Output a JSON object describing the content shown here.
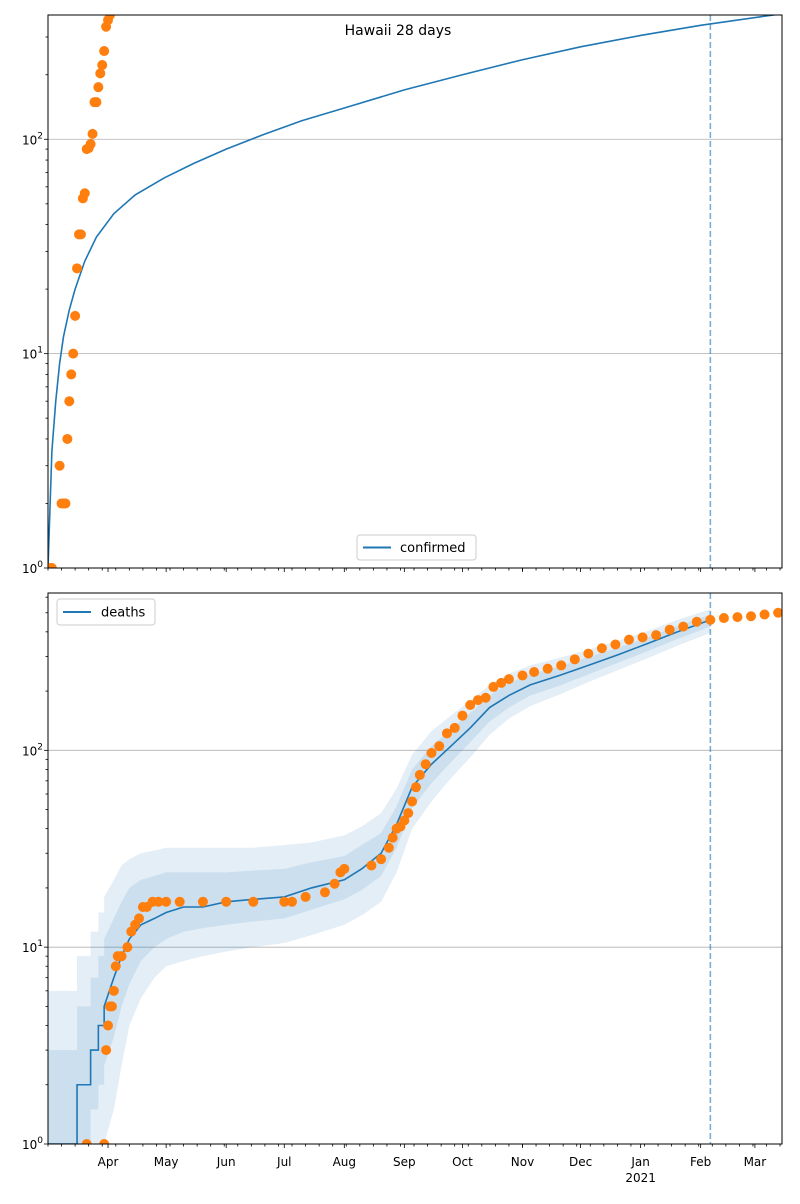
{
  "title": "Hawaii 28 days",
  "colors": {
    "model": "#1f77b4",
    "observed": "#ff7f0e",
    "band": "#1f77b4",
    "grid": "#b0b0b0",
    "cutoff": "#1f77b4"
  },
  "chart_data": [
    {
      "type": "scatter",
      "panel": "top",
      "title": "Hawaii 28 days",
      "yscale": "log",
      "ylim": [
        1,
        380
      ],
      "xlim": [
        "2020-03-01",
        "2021-03-15"
      ],
      "yticks": [
        {
          "value": 1,
          "base": "10",
          "exp": "0"
        },
        {
          "value": 10,
          "base": "10",
          "exp": "1"
        },
        {
          "value": 100,
          "base": "10",
          "exp": "2"
        }
      ],
      "grid": true,
      "legend": {
        "position": "lower center",
        "entries": [
          "confirmed"
        ]
      },
      "cutoff_date": "2021-02-06",
      "series": [
        {
          "name": "confirmed",
          "kind": "line",
          "x": [
            "2020-03-01",
            "2020-03-03",
            "2020-03-05",
            "2020-03-07",
            "2020-03-09",
            "2020-03-12",
            "2020-03-15",
            "2020-03-20",
            "2020-03-26",
            "2020-04-04",
            "2020-04-15",
            "2020-04-30",
            "2020-05-15",
            "2020-06-01",
            "2020-06-20",
            "2020-07-10",
            "2020-08-01",
            "2020-09-01",
            "2020-10-01",
            "2020-11-01",
            "2020-12-01",
            "2021-01-01",
            "2021-02-01",
            "2021-03-15"
          ],
          "values": [
            1,
            3.5,
            6,
            9,
            12,
            16,
            20,
            27,
            35,
            45,
            55,
            66,
            77,
            90,
            105,
            122,
            140,
            170,
            200,
            235,
            270,
            305,
            340,
            385
          ]
        },
        {
          "name": "",
          "kind": "points",
          "x": [
            "2020-03-02",
            "2020-03-03",
            "2020-03-07",
            "2020-03-08",
            "2020-03-09",
            "2020-03-10",
            "2020-03-11",
            "2020-03-12",
            "2020-03-13",
            "2020-03-14",
            "2020-03-15",
            "2020-03-16",
            "2020-03-17",
            "2020-03-18",
            "2020-03-19",
            "2020-03-20",
            "2020-03-21",
            "2020-03-22",
            "2020-03-23",
            "2020-03-24",
            "2020-03-25",
            "2020-03-26",
            "2020-03-27",
            "2020-03-28",
            "2020-03-29",
            "2020-03-30",
            "2020-03-31",
            "2020-04-01",
            "2020-04-02",
            "2020-04-03"
          ],
          "values": [
            1,
            1,
            3,
            2,
            2,
            2,
            4,
            6,
            8,
            10,
            15,
            25,
            36,
            36,
            53,
            56,
            90,
            91,
            95,
            106,
            149,
            149,
            175,
            203,
            222,
            258,
            335,
            360,
            380,
            395
          ]
        }
      ]
    },
    {
      "type": "line",
      "panel": "bottom",
      "yscale": "log",
      "ylim": [
        1,
        630
      ],
      "xlim": [
        "2020-03-01",
        "2021-03-15"
      ],
      "yticks": [
        {
          "value": 1,
          "base": "10",
          "exp": "0"
        },
        {
          "value": 10,
          "base": "10",
          "exp": "1"
        },
        {
          "value": 100,
          "base": "10",
          "exp": "2"
        }
      ],
      "xticks": [
        {
          "date": "2020-04-01",
          "label": "Apr"
        },
        {
          "date": "2020-05-01",
          "label": "May"
        },
        {
          "date": "2020-06-01",
          "label": "Jun"
        },
        {
          "date": "2020-07-01",
          "label": "Jul"
        },
        {
          "date": "2020-08-01",
          "label": "Aug"
        },
        {
          "date": "2020-09-01",
          "label": "Sep"
        },
        {
          "date": "2020-10-01",
          "label": "Oct"
        },
        {
          "date": "2020-11-01",
          "label": "Nov"
        },
        {
          "date": "2020-12-01",
          "label": "Dec"
        },
        {
          "date": "2021-01-01",
          "label": "Jan"
        },
        {
          "date": "2021-02-01",
          "label": "Feb"
        },
        {
          "date": "2021-03-01",
          "label": "Mar"
        }
      ],
      "year_label": {
        "date": "2021-01-01",
        "label": "2021"
      },
      "grid": true,
      "legend": {
        "position": "top-left",
        "entries": [
          "deaths"
        ]
      },
      "cutoff_date": "2021-02-06",
      "series": [
        {
          "name": "deaths",
          "kind": "model",
          "x": [
            "2020-03-01",
            "2020-03-16",
            "2020-03-16",
            "2020-03-23",
            "2020-03-23",
            "2020-03-27",
            "2020-03-27",
            "2020-03-30",
            "2020-03-30",
            "2020-04-04",
            "2020-04-08",
            "2020-04-12",
            "2020-04-18",
            "2020-04-25",
            "2020-05-01",
            "2020-05-10",
            "2020-05-20",
            "2020-06-01",
            "2020-06-15",
            "2020-07-01",
            "2020-07-15",
            "2020-08-01",
            "2020-08-10",
            "2020-08-20",
            "2020-08-28",
            "2020-09-05",
            "2020-09-15",
            "2020-09-25",
            "2020-10-05",
            "2020-10-15",
            "2020-10-25",
            "2020-11-05",
            "2020-11-20",
            "2020-12-05",
            "2020-12-20",
            "2021-01-05",
            "2021-01-20",
            "2021-02-06"
          ],
          "values": [
            1,
            1,
            2,
            2,
            3,
            3,
            4,
            4,
            5,
            7,
            9,
            11,
            13,
            14,
            15,
            16,
            16,
            17,
            17.5,
            18,
            20,
            22,
            25,
            30,
            42,
            65,
            85,
            105,
            130,
            165,
            190,
            215,
            240,
            270,
            305,
            350,
            400,
            460
          ],
          "bands": [
            {
              "lower": [
                1,
                1,
                1,
                1,
                1,
                1,
                1,
                1,
                1,
                1.5,
                2.5,
                4,
                5.5,
                7,
                8,
                8.5,
                9,
                9.5,
                10,
                10.5,
                11.5,
                13,
                14.5,
                17,
                24,
                40,
                55,
                72,
                92,
                120,
                145,
                168,
                192,
                222,
                255,
                295,
                340,
                395
              ],
              "upper": [
                6,
                6,
                9,
                9,
                12,
                12,
                15,
                15,
                18,
                22,
                26,
                28,
                30,
                31,
                32,
                32,
                32,
                32,
                32,
                33,
                34,
                37,
                41,
                48,
                64,
                95,
                125,
                150,
                178,
                215,
                245,
                270,
                295,
                325,
                360,
                405,
                460,
                520
              ]
            },
            {
              "lower": [
                1,
                1,
                1,
                1,
                1.5,
                1.5,
                2,
                2,
                2.5,
                3.5,
                5,
                6.5,
                8.5,
                10,
                11,
                12,
                12.5,
                13,
                13.5,
                14,
                15.5,
                17.5,
                19.5,
                23,
                32,
                51,
                68,
                87,
                110,
                140,
                165,
                190,
                213,
                243,
                278,
                320,
                368,
                425
              ],
              "upper": [
                3,
                3,
                5,
                5,
                7,
                7,
                9,
                9,
                11,
                14,
                17,
                20,
                22,
                23,
                24,
                24,
                24,
                24,
                24.5,
                25,
                27,
                29,
                33,
                38,
                52,
                80,
                105,
                128,
                155,
                190,
                220,
                243,
                267,
                298,
                332,
                375,
                428,
                490
              ]
            }
          ]
        },
        {
          "name": "",
          "kind": "points",
          "x": [
            "2020-03-21",
            "2020-03-30",
            "2020-03-31",
            "2020-04-01",
            "2020-04-02",
            "2020-04-03",
            "2020-04-04",
            "2020-04-05",
            "2020-04-06",
            "2020-04-08",
            "2020-04-11",
            "2020-04-13",
            "2020-04-15",
            "2020-04-17",
            "2020-04-19",
            "2020-04-21",
            "2020-04-24",
            "2020-04-27",
            "2020-05-01",
            "2020-05-08",
            "2020-05-20",
            "2020-06-01",
            "2020-06-15",
            "2020-07-01",
            "2020-07-05",
            "2020-07-12",
            "2020-07-22",
            "2020-07-27",
            "2020-07-30",
            "2020-08-01",
            "2020-08-15",
            "2020-08-20",
            "2020-08-24",
            "2020-08-26",
            "2020-08-28",
            "2020-08-30",
            "2020-09-01",
            "2020-09-03",
            "2020-09-05",
            "2020-09-07",
            "2020-09-09",
            "2020-09-12",
            "2020-09-15",
            "2020-09-19",
            "2020-09-23",
            "2020-09-27",
            "2020-10-01",
            "2020-10-05",
            "2020-10-09",
            "2020-10-13",
            "2020-10-17",
            "2020-10-21",
            "2020-10-25",
            "2020-11-01",
            "2020-11-07",
            "2020-11-14",
            "2020-11-21",
            "2020-11-28",
            "2020-12-05",
            "2020-12-12",
            "2020-12-19",
            "2020-12-26",
            "2021-01-02",
            "2021-01-09",
            "2021-01-16",
            "2021-01-23",
            "2021-01-30",
            "2021-02-06",
            "2021-02-13",
            "2021-02-20",
            "2021-02-27",
            "2021-03-06",
            "2021-03-13"
          ],
          "values": [
            1,
            1,
            3,
            4,
            5,
            5,
            6,
            8,
            9,
            9,
            10,
            12,
            13,
            14,
            16,
            16,
            17,
            17,
            17,
            17,
            17,
            17,
            17,
            17,
            17,
            18,
            19,
            21,
            24,
            25,
            26,
            28,
            32,
            36,
            40,
            41,
            44,
            48,
            55,
            65,
            75,
            85,
            97,
            105,
            122,
            130,
            150,
            170,
            180,
            185,
            210,
            220,
            230,
            240,
            250,
            260,
            270,
            290,
            310,
            330,
            345,
            365,
            375,
            385,
            410,
            425,
            450,
            460,
            470,
            475,
            480,
            490,
            500
          ]
        }
      ]
    }
  ]
}
